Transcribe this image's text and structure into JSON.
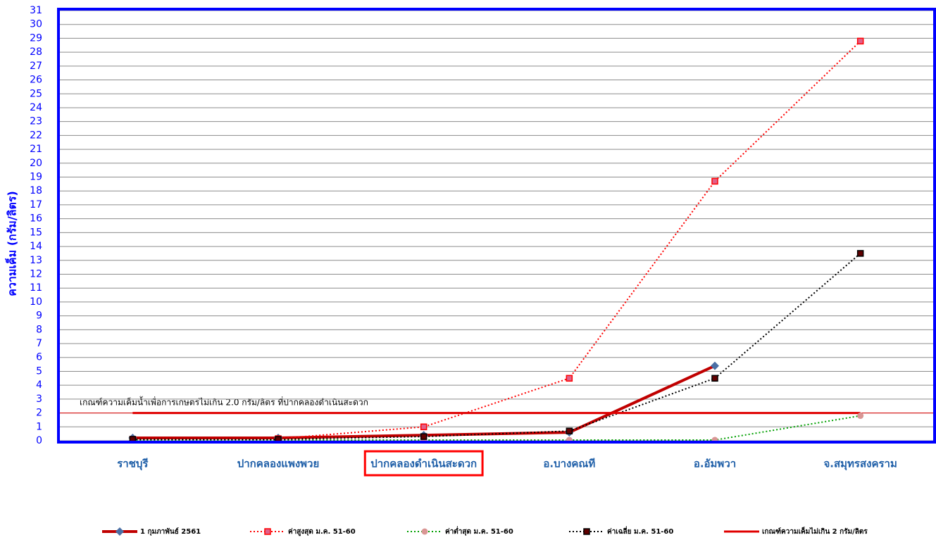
{
  "chart_data": {
    "type": "line",
    "y_label": "ความเค็ม (กรัม/ลิตร)",
    "annotation": "เกณฑ์ความเค็มน้ำเพื่อการเกษตรไม่เกิน 2.0 กรัม/ลิตร ที่ปากคลองดำเนินสะดวก",
    "categories": [
      "ราชบุรี",
      "ปากคลองแพงพวย",
      "ปากคลองดำเนินสะดวก",
      "อ.บางคณที",
      "อ.อัมพวา",
      "จ.สมุทรสงคราม"
    ],
    "highlight": 2,
    "series": [
      {
        "name": "1 กุมภาพันธ์ 2561",
        "color": "#c00000",
        "width": 4,
        "dash": "solid",
        "marker": "diamond",
        "marker_color": "#4a6fa5",
        "values": [
          0.2,
          0.2,
          0.4,
          0.6,
          5.4,
          null
        ]
      },
      {
        "name": "ค่าสูงสุด ม.ค. 51-60",
        "color": "#ff0000",
        "width": 2,
        "dash": "dotted",
        "marker": "square",
        "marker_color": "#e0608a",
        "values": [
          0.1,
          0.15,
          1.0,
          4.5,
          18.7,
          28.8
        ]
      },
      {
        "name": "ค่าต่ำสุด ม.ค. 51-60",
        "color": "#00a000",
        "width": 2,
        "dash": "dotted",
        "marker": "circle",
        "marker_color": "#d99694",
        "values": [
          0.05,
          0.05,
          0.05,
          0.05,
          0.05,
          1.8
        ]
      },
      {
        "name": "ค่าเฉลี่ย ม.ค. 51-60",
        "color": "#000000",
        "width": 2,
        "dash": "dotted",
        "marker": "square",
        "marker_color": "#600000",
        "values": [
          0.1,
          0.1,
          0.3,
          0.7,
          4.5,
          13.5
        ]
      },
      {
        "name": "เกณฑ์ความเค็มไม่เกิน 2 กรัม/ลิตร",
        "color": "#e00000",
        "width": 3,
        "dash": "solid",
        "marker": "none",
        "marker_color": "#e00000",
        "values": [
          2,
          2,
          2,
          2,
          2,
          2
        ]
      }
    ],
    "ylim": [
      0,
      31
    ],
    "yticks": [
      0,
      1,
      2,
      3,
      4,
      5,
      6,
      7,
      8,
      9,
      10,
      11,
      12,
      13,
      14,
      15,
      16,
      17,
      18,
      19,
      20,
      21,
      22,
      23,
      24,
      25,
      26,
      27,
      28,
      29,
      30,
      31
    ],
    "grid": true
  }
}
